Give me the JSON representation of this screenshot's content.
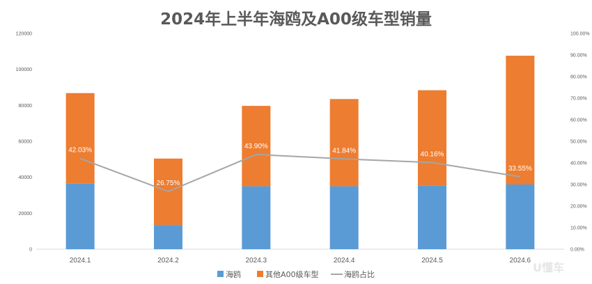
{
  "chart_data": {
    "type": "bar",
    "stacked": true,
    "title": "2024年上半年海鸥及A00级车型销量",
    "categories": [
      "2024.1",
      "2024.2",
      "2024.3",
      "2024.4",
      "2024.5",
      "2024.6"
    ],
    "series": [
      {
        "name": "海鸥",
        "type": "bar",
        "axis": "left",
        "color": "#5b9bd5",
        "values": [
          36500,
          13500,
          35000,
          35000,
          35500,
          36000
        ]
      },
      {
        "name": "其他A00级车型",
        "type": "bar",
        "axis": "left",
        "color": "#ed7d31",
        "values": [
          50300,
          36900,
          44700,
          48500,
          52900,
          71600
        ]
      },
      {
        "name": "海鸥占比",
        "type": "line",
        "axis": "right",
        "color": "#a5a5a5",
        "values": [
          42.03,
          26.75,
          43.9,
          41.84,
          40.16,
          33.55
        ],
        "labels": [
          "42.03%",
          "26.75%",
          "43.90%",
          "41.84%",
          "40.16%",
          "33.55%"
        ]
      }
    ],
    "ylim": [
      0,
      120000
    ],
    "y_ticks": [
      "0",
      "20000",
      "40000",
      "60000",
      "80000",
      "100000",
      "120000"
    ],
    "y2lim": [
      0,
      100
    ],
    "y2_ticks": [
      "0.00%",
      "10.00%",
      "20.00%",
      "30.00%",
      "40.00%",
      "50.00%",
      "60.00%",
      "70.00%",
      "80.00%",
      "90.00%",
      "100.00%"
    ],
    "grid": false,
    "legend": "bottom"
  },
  "legend": {
    "items": [
      "海鸥",
      "其他A00级车型",
      "海鸥占比"
    ]
  },
  "watermark": "U懂车"
}
